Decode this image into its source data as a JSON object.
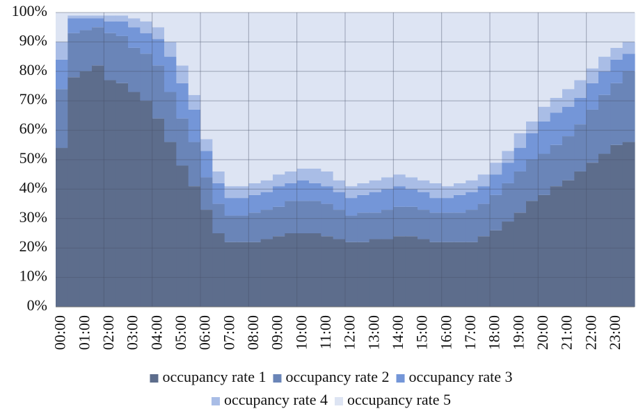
{
  "chart_data": {
    "type": "stacked_bar",
    "categories": [
      "00:00",
      null,
      "01:00",
      null,
      "02:00",
      null,
      "03:00",
      null,
      "04:00",
      null,
      "05:00",
      null,
      "06:00",
      null,
      "07:00",
      null,
      "08:00",
      null,
      "09:00",
      null,
      "10:00",
      null,
      "11:00",
      null,
      "12:00",
      null,
      "13:00",
      null,
      "14:00",
      null,
      "15:00",
      null,
      "16:00",
      null,
      "17:00",
      null,
      "18:00",
      null,
      "19:00",
      null,
      "20:00",
      null,
      "21:00",
      null,
      "22:00",
      null,
      "23:00",
      null
    ],
    "series": [
      {
        "name": "occupancy rate 1",
        "color": "#5d6d8c",
        "values": [
          54,
          78,
          80,
          82,
          77,
          76,
          73,
          70,
          64,
          56,
          48,
          41,
          33,
          25,
          22,
          22,
          22,
          23,
          24,
          25,
          25,
          25,
          24,
          23,
          22,
          22,
          23,
          23,
          24,
          24,
          23,
          22,
          22,
          22,
          22,
          24,
          26,
          29,
          32,
          36,
          38,
          41,
          43,
          46,
          49,
          52,
          55,
          56
        ]
      },
      {
        "name": "occupancy rate 2",
        "color": "#6a85b8",
        "values": [
          20,
          15,
          14,
          13,
          16,
          16,
          15,
          16,
          18,
          17,
          16,
          15,
          11,
          10,
          9,
          9,
          10,
          10,
          10,
          11,
          11,
          11,
          11,
          10,
          9,
          10,
          9,
          10,
          10,
          10,
          10,
          10,
          10,
          10,
          11,
          11,
          12,
          13,
          14,
          14,
          14,
          14,
          15,
          16,
          18,
          20,
          21,
          24
        ]
      },
      {
        "name": "occupancy rate 3",
        "color": "#7496d8",
        "values": [
          10,
          5,
          4,
          3,
          4,
          5,
          7,
          7,
          9,
          12,
          12,
          11,
          9,
          7,
          6,
          6,
          6,
          6,
          7,
          6,
          7,
          6,
          6,
          6,
          6,
          6,
          7,
          7,
          7,
          6,
          6,
          5,
          5,
          6,
          6,
          6,
          7,
          7,
          8,
          9,
          11,
          11,
          10,
          9,
          9,
          8,
          8,
          6
        ]
      },
      {
        "name": "occupancy rate 4",
        "color": "#a9bde6",
        "values": [
          6,
          1,
          1,
          1,
          2,
          2,
          3,
          4,
          4,
          5,
          6,
          5,
          4,
          4,
          4,
          4,
          4,
          4,
          4,
          4,
          4,
          5,
          5,
          4,
          4,
          4,
          4,
          4,
          4,
          4,
          4,
          5,
          4,
          4,
          4,
          4,
          4,
          4,
          5,
          4,
          5,
          5,
          6,
          6,
          5,
          5,
          4,
          4
        ]
      },
      {
        "name": "occupancy rate 5",
        "color": "#dde4f3",
        "values": [
          10,
          1,
          1,
          1,
          1,
          1,
          2,
          3,
          5,
          10,
          18,
          28,
          43,
          54,
          59,
          59,
          58,
          57,
          55,
          54,
          53,
          53,
          54,
          57,
          59,
          58,
          57,
          56,
          55,
          56,
          57,
          58,
          59,
          58,
          57,
          55,
          51,
          47,
          41,
          37,
          32,
          29,
          26,
          23,
          19,
          15,
          12,
          10
        ]
      }
    ],
    "ylim": [
      0,
      100
    ],
    "yticks": [
      {
        "value": 0,
        "label": "0%"
      },
      {
        "value": 10,
        "label": "10%"
      },
      {
        "value": 20,
        "label": "20%"
      },
      {
        "value": 30,
        "label": "30%"
      },
      {
        "value": 40,
        "label": "40%"
      },
      {
        "value": 50,
        "label": "50%"
      },
      {
        "value": 60,
        "label": "60%"
      },
      {
        "value": 70,
        "label": "70%"
      },
      {
        "value": 80,
        "label": "80%"
      },
      {
        "value": 90,
        "label": "90%"
      },
      {
        "value": 100,
        "label": "100%"
      }
    ],
    "grid": true,
    "legend": "bottom"
  }
}
